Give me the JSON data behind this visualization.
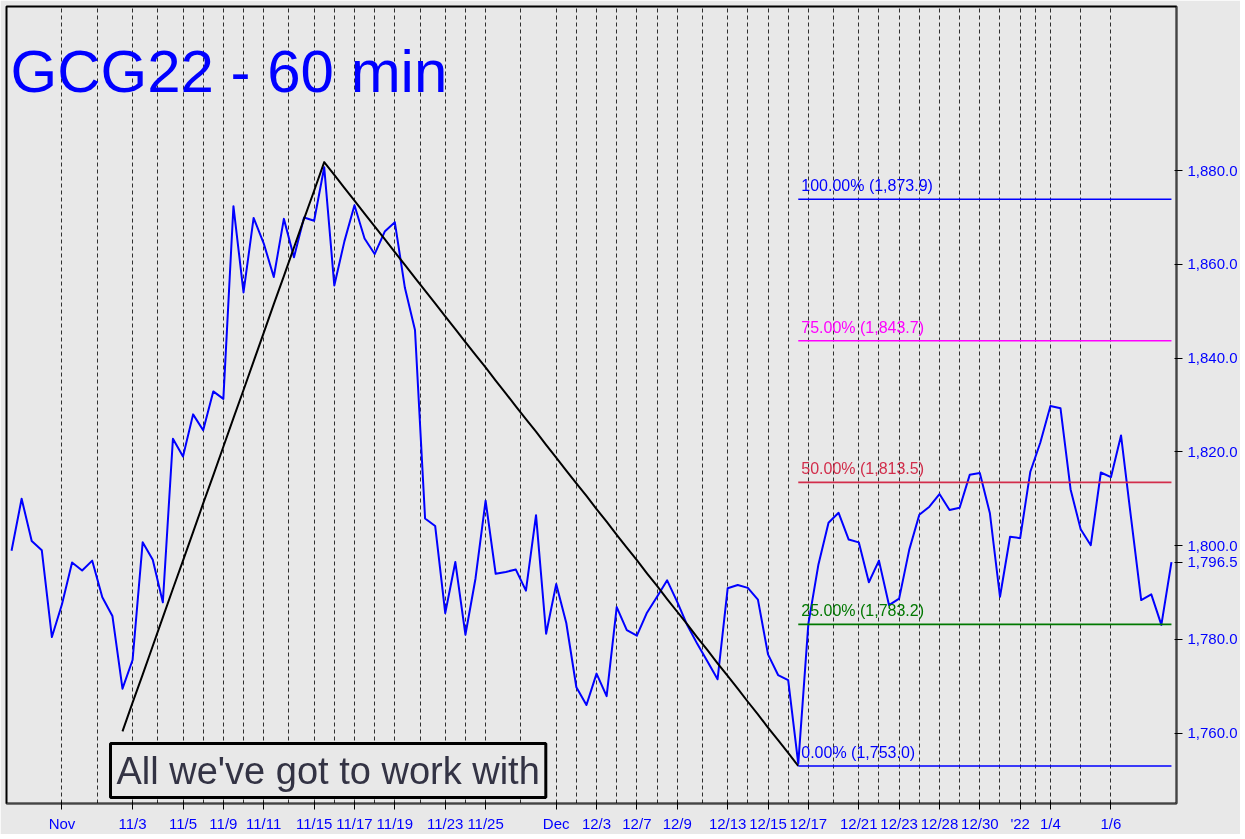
{
  "chart_data": {
    "type": "line",
    "title": "GCG22 - 60 min",
    "categories": [
      null,
      null,
      null,
      null,
      null,
      "Nov",
      null,
      null,
      null,
      null,
      null,
      null,
      "11/3",
      null,
      null,
      null,
      null,
      "11/5",
      null,
      null,
      null,
      "11/9",
      null,
      null,
      null,
      "11/11",
      null,
      null,
      null,
      null,
      "11/15",
      null,
      null,
      null,
      "11/17",
      null,
      null,
      null,
      "11/19",
      null,
      null,
      null,
      null,
      "11/23",
      null,
      null,
      null,
      "11/25",
      null,
      null,
      null,
      null,
      null,
      null,
      "Dec",
      null,
      null,
      null,
      "12/3",
      null,
      null,
      null,
      "12/7",
      null,
      null,
      null,
      "12/9",
      null,
      null,
      null,
      null,
      "12/13",
      null,
      null,
      null,
      "12/15",
      null,
      null,
      null,
      "12/17",
      null,
      null,
      null,
      null,
      "12/21",
      null,
      null,
      null,
      "12/23",
      null,
      null,
      null,
      "12/28",
      null,
      null,
      null,
      "12/30",
      null,
      null,
      null,
      "'22",
      null,
      null,
      "1/4",
      null,
      null,
      null,
      null,
      null,
      "1/6",
      null,
      null,
      null,
      null,
      null,
      null
    ],
    "series": [
      {
        "color": "#0000ff",
        "values": [
          1798.9,
          1810.0,
          1801.0,
          1799.0,
          1780.5,
          1787.5,
          1796.4,
          1794.7,
          1796.8,
          1789.0,
          1785.0,
          1769.5,
          1775.6,
          1800.7,
          1797.0,
          1787.9,
          1822.8,
          1819.0,
          1828.0,
          1824.6,
          1832.9,
          1831.3,
          1872.4,
          1854.0,
          1869.9,
          1864.5,
          1857.3,
          1869.7,
          1861.5,
          1870.0,
          1869.3,
          1880.7,
          1855.5,
          1864.9,
          1872.6,
          1865.5,
          1862.2,
          1867.0,
          1869.0,
          1855.0,
          1846.0,
          1805.8,
          1804.2,
          1785.6,
          1796.5,
          1781.0,
          1793.0,
          1809.6,
          1794.0,
          1794.4,
          1794.9,
          1790.4,
          1806.5,
          1781.2,
          1791.8,
          1783.5,
          1769.8,
          1766.0,
          1772.7,
          1767.9,
          1786.9,
          1782.0,
          1780.8,
          1785.7,
          1789.1,
          1792.6,
          1788.0,
          1783.0,
          1779.0,
          1775.3,
          1771.5,
          1790.9,
          1791.6,
          1791.0,
          1788.5,
          1776.8,
          1772.4,
          1771.3,
          1753.5,
          1783.3,
          1796.0,
          1804.9,
          1807.0,
          1801.3,
          1800.7,
          1792.2,
          1796.8,
          1787.3,
          1788.7,
          1799.1,
          1806.6,
          1808.3,
          1811.0,
          1807.6,
          1808.1,
          1815.1,
          1815.5,
          1806.9,
          1789.1,
          1801.9,
          1801.6,
          1815.7,
          1822.0,
          1829.8,
          1829.3,
          1812.0,
          1803.5,
          1800.1,
          1815.6,
          1814.6,
          1823.5,
          1805.8,
          1788.4,
          1789.6,
          1783.1,
          1796.5
        ]
      },
      {
        "color": "#000000",
        "values": [
          null,
          null,
          null,
          null,
          null,
          null,
          null,
          null,
          null,
          null,
          null,
          1760.4,
          1766.5,
          1772.5,
          1778.6,
          1784.7,
          1790.8,
          1796.8,
          1802.9,
          1809.0,
          1815.0,
          1821.1,
          1827.2,
          1833.2,
          1839.3,
          1845.4,
          1851.5,
          1857.5,
          1863.6,
          1869.7,
          1875.7,
          1881.8,
          1879.1,
          1876.3,
          1873.6,
          1870.8,
          1868.1,
          1865.4,
          1862.6,
          1859.9,
          1857.1,
          1854.4,
          1851.7,
          1848.9,
          1846.2,
          1843.4,
          1840.7,
          1838.0,
          1835.2,
          1832.5,
          1829.7,
          1827.0,
          1824.3,
          1821.5,
          1818.8,
          1816.0,
          1813.3,
          1810.6,
          1807.8,
          1805.1,
          1802.3,
          1799.6,
          1796.9,
          1794.1,
          1791.4,
          1788.6,
          1785.9,
          1783.2,
          1780.4,
          1777.7,
          1774.9,
          1772.2,
          1769.5,
          1766.7,
          1764.0,
          1761.2,
          1758.5,
          1755.8,
          1753.0,
          null,
          null,
          null,
          null,
          null,
          null,
          null,
          null,
          null,
          null,
          null,
          null,
          null,
          null,
          null,
          null,
          null,
          null,
          null,
          null,
          null,
          null,
          null,
          null,
          null,
          null,
          null,
          null,
          null,
          null,
          null,
          null,
          null,
          null,
          null,
          null,
          null
        ]
      },
      {
        "name": "100.00% (1,873.9)",
        "color": "#0000ff",
        "values": [
          null,
          null,
          null,
          null,
          null,
          null,
          null,
          null,
          null,
          null,
          null,
          null,
          null,
          null,
          null,
          null,
          null,
          null,
          null,
          null,
          null,
          null,
          null,
          null,
          null,
          null,
          null,
          null,
          null,
          null,
          null,
          null,
          null,
          null,
          null,
          null,
          null,
          null,
          null,
          null,
          null,
          null,
          null,
          null,
          null,
          null,
          null,
          null,
          null,
          null,
          null,
          null,
          null,
          null,
          null,
          null,
          null,
          null,
          null,
          null,
          null,
          null,
          null,
          null,
          null,
          null,
          null,
          null,
          null,
          null,
          null,
          null,
          null,
          null,
          null,
          null,
          null,
          null,
          1873.9,
          1873.9,
          1873.9,
          1873.9,
          1873.9,
          1873.9,
          1873.9,
          1873.9,
          1873.9,
          1873.9,
          1873.9,
          1873.9,
          1873.9,
          1873.9,
          1873.9,
          1873.9,
          1873.9,
          1873.9,
          1873.9,
          1873.9,
          1873.9,
          1873.9,
          1873.9,
          1873.9,
          1873.9,
          1873.9,
          1873.9,
          1873.9,
          1873.9,
          1873.9,
          1873.9,
          1873.9,
          1873.9,
          1873.9,
          1873.9,
          1873.9,
          1873.9,
          1873.9
        ]
      },
      {
        "name": "75.00% (1,843.7)",
        "color": "#ff00ff",
        "values": [
          null,
          null,
          null,
          null,
          null,
          null,
          null,
          null,
          null,
          null,
          null,
          null,
          null,
          null,
          null,
          null,
          null,
          null,
          null,
          null,
          null,
          null,
          null,
          null,
          null,
          null,
          null,
          null,
          null,
          null,
          null,
          null,
          null,
          null,
          null,
          null,
          null,
          null,
          null,
          null,
          null,
          null,
          null,
          null,
          null,
          null,
          null,
          null,
          null,
          null,
          null,
          null,
          null,
          null,
          null,
          null,
          null,
          null,
          null,
          null,
          null,
          null,
          null,
          null,
          null,
          null,
          null,
          null,
          null,
          null,
          null,
          null,
          null,
          null,
          null,
          null,
          null,
          null,
          1843.7,
          1843.7,
          1843.7,
          1843.7,
          1843.7,
          1843.7,
          1843.7,
          1843.7,
          1843.7,
          1843.7,
          1843.7,
          1843.7,
          1843.7,
          1843.7,
          1843.7,
          1843.7,
          1843.7,
          1843.7,
          1843.7,
          1843.7,
          1843.7,
          1843.7,
          1843.7,
          1843.7,
          1843.7,
          1843.7,
          1843.7,
          1843.7,
          1843.7,
          1843.7,
          1843.7,
          1843.7,
          1843.7,
          1843.7,
          1843.7,
          1843.7,
          1843.7,
          1843.7
        ]
      },
      {
        "name": "50.00% (1,813.5)",
        "color": "#d22d4b",
        "values": [
          null,
          null,
          null,
          null,
          null,
          null,
          null,
          null,
          null,
          null,
          null,
          null,
          null,
          null,
          null,
          null,
          null,
          null,
          null,
          null,
          null,
          null,
          null,
          null,
          null,
          null,
          null,
          null,
          null,
          null,
          null,
          null,
          null,
          null,
          null,
          null,
          null,
          null,
          null,
          null,
          null,
          null,
          null,
          null,
          null,
          null,
          null,
          null,
          null,
          null,
          null,
          null,
          null,
          null,
          null,
          null,
          null,
          null,
          null,
          null,
          null,
          null,
          null,
          null,
          null,
          null,
          null,
          null,
          null,
          null,
          null,
          null,
          null,
          null,
          null,
          null,
          null,
          null,
          1813.5,
          1813.5,
          1813.5,
          1813.5,
          1813.5,
          1813.5,
          1813.5,
          1813.5,
          1813.5,
          1813.5,
          1813.5,
          1813.5,
          1813.5,
          1813.5,
          1813.5,
          1813.5,
          1813.5,
          1813.5,
          1813.5,
          1813.5,
          1813.5,
          1813.5,
          1813.5,
          1813.5,
          1813.5,
          1813.5,
          1813.5,
          1813.5,
          1813.5,
          1813.5,
          1813.5,
          1813.5,
          1813.5,
          1813.5,
          1813.5,
          1813.5,
          1813.5,
          1813.5
        ]
      },
      {
        "name": "25.00% (1,783.2)",
        "color": "#007800",
        "values": [
          null,
          null,
          null,
          null,
          null,
          null,
          null,
          null,
          null,
          null,
          null,
          null,
          null,
          null,
          null,
          null,
          null,
          null,
          null,
          null,
          null,
          null,
          null,
          null,
          null,
          null,
          null,
          null,
          null,
          null,
          null,
          null,
          null,
          null,
          null,
          null,
          null,
          null,
          null,
          null,
          null,
          null,
          null,
          null,
          null,
          null,
          null,
          null,
          null,
          null,
          null,
          null,
          null,
          null,
          null,
          null,
          null,
          null,
          null,
          null,
          null,
          null,
          null,
          null,
          null,
          null,
          null,
          null,
          null,
          null,
          null,
          null,
          null,
          null,
          null,
          null,
          null,
          null,
          1783.2,
          1783.2,
          1783.2,
          1783.2,
          1783.2,
          1783.2,
          1783.2,
          1783.2,
          1783.2,
          1783.2,
          1783.2,
          1783.2,
          1783.2,
          1783.2,
          1783.2,
          1783.2,
          1783.2,
          1783.2,
          1783.2,
          1783.2,
          1783.2,
          1783.2,
          1783.2,
          1783.2,
          1783.2,
          1783.2,
          1783.2,
          1783.2,
          1783.2,
          1783.2,
          1783.2,
          1783.2,
          1783.2,
          1783.2,
          1783.2,
          1783.2,
          1783.2,
          1783.2
        ]
      },
      {
        "name": "0.00% (1,753.0)",
        "color": "#0000ff",
        "values": [
          null,
          null,
          null,
          null,
          null,
          null,
          null,
          null,
          null,
          null,
          null,
          null,
          null,
          null,
          null,
          null,
          null,
          null,
          null,
          null,
          null,
          null,
          null,
          null,
          null,
          null,
          null,
          null,
          null,
          null,
          null,
          null,
          null,
          null,
          null,
          null,
          null,
          null,
          null,
          null,
          null,
          null,
          null,
          null,
          null,
          null,
          null,
          null,
          null,
          null,
          null,
          null,
          null,
          null,
          null,
          null,
          null,
          null,
          null,
          null,
          null,
          null,
          null,
          null,
          null,
          null,
          null,
          null,
          null,
          null,
          null,
          null,
          null,
          null,
          null,
          null,
          null,
          null,
          1753.0,
          1753.0,
          1753.0,
          1753.0,
          1753.0,
          1753.0,
          1753.0,
          1753.0,
          1753.0,
          1753.0,
          1753.0,
          1753.0,
          1753.0,
          1753.0,
          1753.0,
          1753.0,
          1753.0,
          1753.0,
          1753.0,
          1753.0,
          1753.0,
          1753.0,
          1753.0,
          1753.0,
          1753.0,
          1753.0,
          1753.0,
          1753.0,
          1753.0,
          1753.0,
          1753.0,
          1753.0,
          1753.0,
          1753.0,
          1753.0,
          1753.0,
          1753.0,
          1753.0
        ]
      }
    ],
    "ylim": [
      1745,
      1915
    ],
    "yticks": [
      {
        "value": 1760,
        "label": "1,760.0"
      },
      {
        "value": 1780,
        "label": "1,780.0"
      },
      {
        "value": 1796.5,
        "label": "1,796.5"
      },
      {
        "value": 1800,
        "label": "1,800.0"
      },
      {
        "value": 1820,
        "label": "1,820.0"
      },
      {
        "value": 1840,
        "label": "1,840.0"
      },
      {
        "value": 1860,
        "label": "1,860.0"
      },
      {
        "value": 1880,
        "label": "1,880.0"
      }
    ],
    "grid": "x",
    "annotations": [
      "All we've got to work with"
    ]
  }
}
